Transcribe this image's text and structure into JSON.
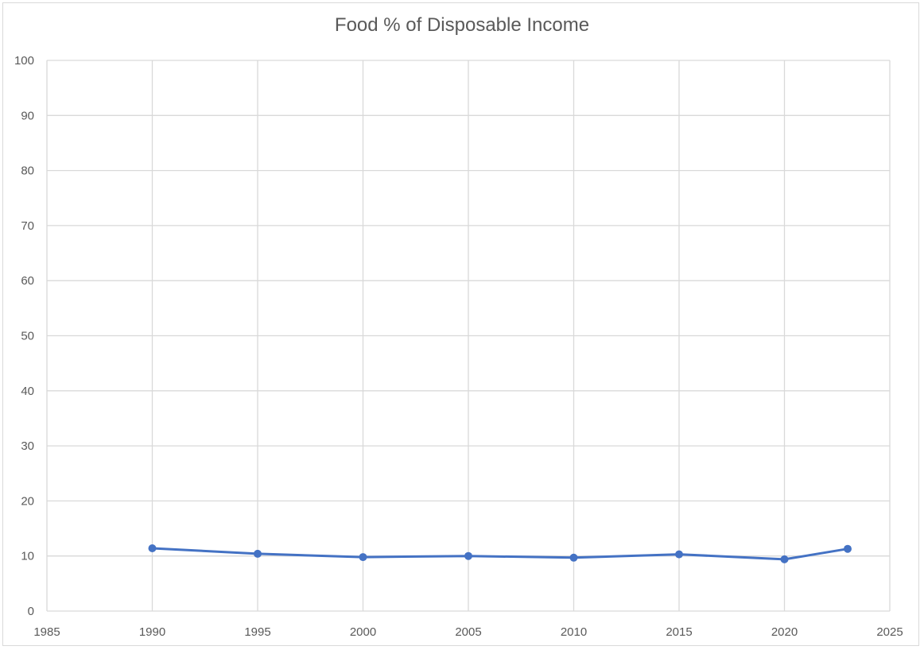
{
  "chart_data": {
    "type": "scatter",
    "title": "Food % of Disposable Income",
    "xlabel": "",
    "ylabel": "",
    "xlim": [
      1985,
      2025
    ],
    "ylim": [
      0,
      100
    ],
    "x_ticks": [
      1985,
      1990,
      1995,
      2000,
      2005,
      2010,
      2015,
      2020,
      2025
    ],
    "y_ticks": [
      0,
      10,
      20,
      30,
      40,
      50,
      60,
      70,
      80,
      90,
      100
    ],
    "grid": true,
    "legend": "none",
    "series": [
      {
        "x": [
          1990,
          1995,
          2000,
          2005,
          2010,
          2015,
          2020,
          2023
        ],
        "y": [
          11.4,
          10.4,
          9.8,
          10.0,
          9.7,
          10.3,
          9.4,
          11.3
        ],
        "style": "line-with-markers",
        "color": "#4472c4"
      }
    ],
    "colors": {
      "grid": "#d9d9d9",
      "axis_text": "#595959",
      "series": "#4472c4"
    }
  }
}
